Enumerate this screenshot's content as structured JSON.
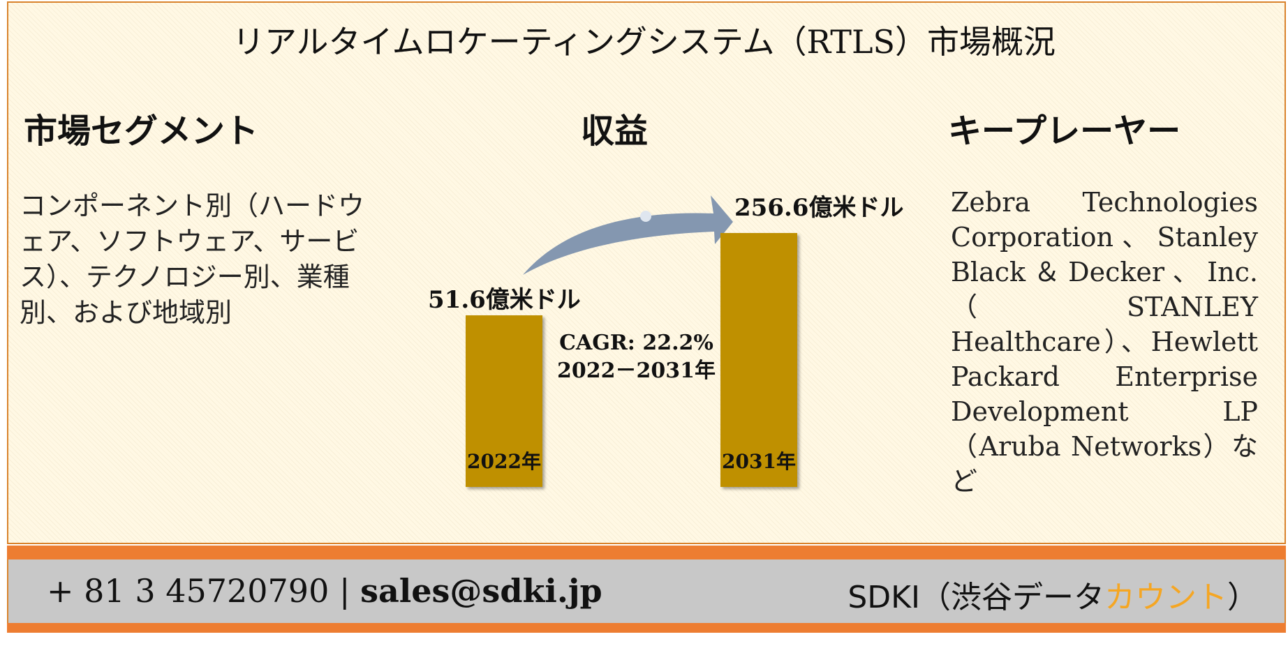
{
  "title": "リアルタイムロケーティングシステム（RTLS）市場概況",
  "headings": {
    "segments": "市場セグメント",
    "revenue": "収益",
    "key_players": "キープレーヤー"
  },
  "segments_text": "コンポーネント別（ハードウェア、ソフトウェア、サービス）、テクノロジー別、業種別、および地域別",
  "key_players_text": "Zebra Technologies Corporation、Stanley Black＆Decker、Inc.（STANLEY Healthcare）、Hewlett Packard Enterprise Development LP（Aruba Networks）など",
  "chart_data": {
    "type": "bar",
    "categories": [
      "2022年",
      "2031年"
    ],
    "values": [
      51.6,
      256.6
    ],
    "value_labels": [
      "51.6億米ドル",
      "256.6億米ドル"
    ],
    "unit": "億米ドル",
    "annotation": {
      "cagr": "CAGR: 22.2%",
      "period": "2022－2031年"
    },
    "colors": {
      "bar": "#bf9000",
      "arrow": "#8497b0"
    }
  },
  "footer": {
    "phone": "+ 81 3 45720790",
    "separator": "|",
    "email": "sales@sdki.jp",
    "brand_prefix": "SDKI（渋谷データ",
    "brand_accent": "カウント",
    "brand_suffix": "）"
  },
  "colors": {
    "border": "#d9822b",
    "footer_stripe": "#ed7d31",
    "footer_bg": "#c8c8c8",
    "background": "#fff8e4",
    "brand_accent": "#f5a623"
  }
}
